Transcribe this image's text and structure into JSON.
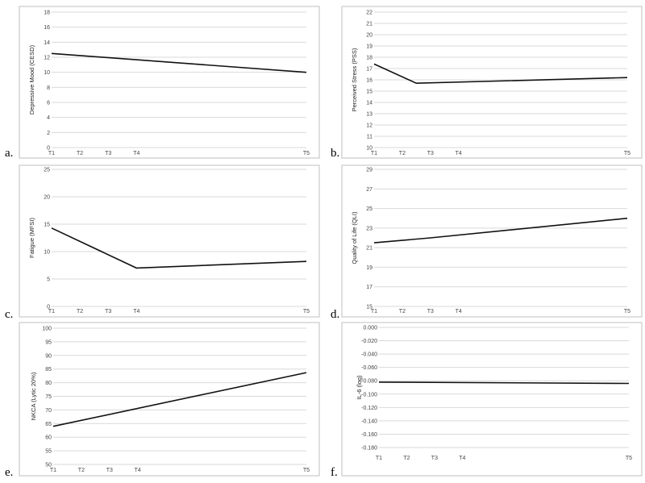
{
  "chart_data": [
    {
      "id": "a",
      "panel_label": "a.",
      "type": "line",
      "ylabel": "Depressive Mood (CESD)",
      "yticks": [
        "0",
        "2",
        "4",
        "6",
        "8",
        "10",
        "12",
        "14",
        "16",
        "18"
      ],
      "ylim": [
        0,
        18
      ],
      "x_categories": [
        "T1",
        "T2",
        "T3",
        "T4",
        "T5"
      ],
      "x_positions": [
        1,
        2,
        3,
        4,
        10
      ],
      "xlim": [
        1,
        10
      ],
      "series": [
        {
          "points": [
            [
              1,
              12.5
            ],
            [
              10,
              10.0
            ]
          ]
        }
      ],
      "grid": true
    },
    {
      "id": "b",
      "panel_label": "b.",
      "type": "line",
      "ylabel": "Perceived Stress (PSS)",
      "yticks": [
        "10",
        "11",
        "12",
        "13",
        "14",
        "15",
        "16",
        "17",
        "18",
        "19",
        "20",
        "21",
        "22"
      ],
      "ylim": [
        10,
        22
      ],
      "x_categories": [
        "T1",
        "T2",
        "T3",
        "T4",
        "T5"
      ],
      "x_positions": [
        1,
        2,
        3,
        4,
        10
      ],
      "xlim": [
        1,
        10
      ],
      "series": [
        {
          "points": [
            [
              1,
              17.4
            ],
            [
              2.5,
              15.7
            ],
            [
              10,
              16.2
            ]
          ]
        }
      ],
      "grid": true
    },
    {
      "id": "c",
      "panel_label": "c.",
      "type": "line",
      "ylabel": "Fatigue (MFSI)",
      "yticks": [
        "0",
        "5",
        "10",
        "15",
        "20",
        "25"
      ],
      "ylim": [
        0,
        25
      ],
      "x_categories": [
        "T1",
        "T2",
        "T3",
        "T4",
        "T5"
      ],
      "x_positions": [
        1,
        2,
        3,
        4,
        10
      ],
      "xlim": [
        1,
        10
      ],
      "series": [
        {
          "points": [
            [
              1,
              14.3
            ],
            [
              4,
              7.0
            ],
            [
              10,
              8.2
            ]
          ]
        }
      ],
      "grid": true
    },
    {
      "id": "d",
      "panel_label": "d.",
      "type": "line",
      "ylabel": "Quality of Life (QLI)",
      "yticks": [
        "15",
        "17",
        "19",
        "21",
        "23",
        "25",
        "27",
        "29"
      ],
      "ylim": [
        15,
        29
      ],
      "x_categories": [
        "T1",
        "T2",
        "T3",
        "T4",
        "T5"
      ],
      "x_positions": [
        1,
        2,
        3,
        4,
        10
      ],
      "xlim": [
        1,
        10
      ],
      "series": [
        {
          "points": [
            [
              1,
              21.5
            ],
            [
              3,
              22.0
            ],
            [
              10,
              24.0
            ]
          ]
        }
      ],
      "grid": true
    },
    {
      "id": "e",
      "panel_label": "e.",
      "type": "line",
      "ylabel": "NKCA (Lytic 20%)",
      "yticks": [
        "50",
        "55",
        "60",
        "65",
        "70",
        "75",
        "80",
        "85",
        "90",
        "95",
        "100"
      ],
      "ylim": [
        50,
        100
      ],
      "x_categories": [
        "T1",
        "T2",
        "T3",
        "T4",
        "T5"
      ],
      "x_positions": [
        1,
        2,
        3,
        4,
        10
      ],
      "xlim": [
        1,
        10
      ],
      "series": [
        {
          "points": [
            [
              1,
              64.0
            ],
            [
              10,
              83.7
            ]
          ]
        }
      ],
      "grid": true
    },
    {
      "id": "f",
      "panel_label": "f.",
      "type": "line",
      "ylabel": "IL-6 (log)",
      "yticks": [
        "0.000",
        "-0.020",
        "-0.040",
        "-0.060",
        "-0.080",
        "-0.100",
        "-0.120",
        "-0.140",
        "-0.160",
        "-0.180"
      ],
      "ylim": [
        -0.18,
        0.0
      ],
      "x_categories": [
        "T1",
        "T2",
        "T3",
        "T4",
        "T5"
      ],
      "x_positions": [
        1,
        2,
        3,
        4,
        10
      ],
      "xlim": [
        1,
        10
      ],
      "series": [
        {
          "points": [
            [
              1,
              -0.082
            ],
            [
              10,
              -0.084
            ]
          ]
        }
      ],
      "grid": true
    }
  ]
}
